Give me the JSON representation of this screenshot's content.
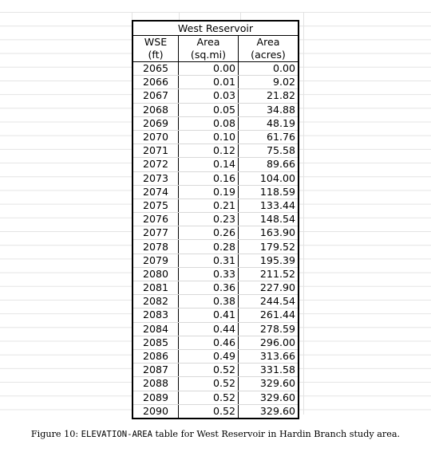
{
  "table": {
    "title": "West Reservoir",
    "headers": [
      [
        "WSE",
        "(ft)"
      ],
      [
        "Area",
        "(sq.mi)"
      ],
      [
        "Area",
        "(acres)"
      ]
    ],
    "rows": [
      [
        "2065",
        "0.00",
        "0.00"
      ],
      [
        "2066",
        "0.01",
        "9.02"
      ],
      [
        "2067",
        "0.03",
        "21.82"
      ],
      [
        "2068",
        "0.05",
        "34.88"
      ],
      [
        "2069",
        "0.08",
        "48.19"
      ],
      [
        "2070",
        "0.10",
        "61.76"
      ],
      [
        "2071",
        "0.12",
        "75.58"
      ],
      [
        "2072",
        "0.14",
        "89.66"
      ],
      [
        "2073",
        "0.16",
        "104.00"
      ],
      [
        "2074",
        "0.19",
        "118.59"
      ],
      [
        "2075",
        "0.21",
        "133.44"
      ],
      [
        "2076",
        "0.23",
        "148.54"
      ],
      [
        "2077",
        "0.26",
        "163.90"
      ],
      [
        "2078",
        "0.28",
        "179.52"
      ],
      [
        "2079",
        "0.31",
        "195.39"
      ],
      [
        "2080",
        "0.33",
        "211.52"
      ],
      [
        "2081",
        "0.36",
        "227.90"
      ],
      [
        "2082",
        "0.38",
        "244.54"
      ],
      [
        "2083",
        "0.41",
        "261.44"
      ],
      [
        "2084",
        "0.44",
        "278.59"
      ],
      [
        "2085",
        "0.46",
        "296.00"
      ],
      [
        "2086",
        "0.49",
        "313.66"
      ],
      [
        "2087",
        "0.52",
        "331.58"
      ],
      [
        "2088",
        "0.52",
        "329.60"
      ],
      [
        "2089",
        "0.52",
        "329.60"
      ],
      [
        "2090",
        "0.52",
        "329.60"
      ]
    ]
  },
  "caption": {
    "prefix": "Figure 10: ",
    "keyword": "ELEVATION-AREA",
    "suffix": " table for West Reservoir in Hardin Branch study area."
  }
}
